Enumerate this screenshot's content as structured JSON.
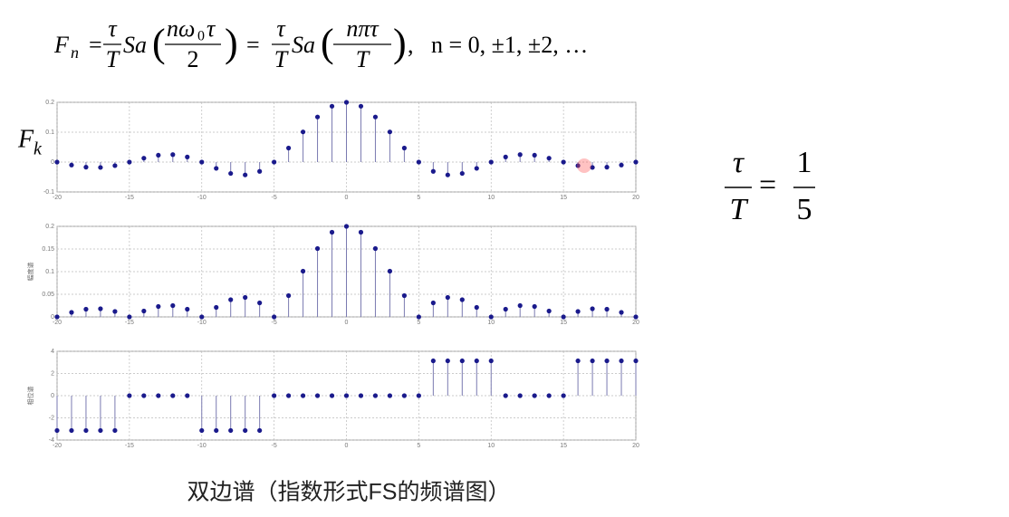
{
  "formula": [
    "F",
    "n",
    "=",
    "τ",
    "T",
    "Sa",
    "(",
    "nω",
    "0",
    "τ",
    "2",
    ")",
    "=",
    "τ",
    "T",
    "Sa",
    "(",
    "nπτ",
    "T",
    ")",
    ",   n = 0, ±1, ±2, …"
  ],
  "ratio": [
    "τ",
    "T",
    "=",
    "1",
    "5"
  ],
  "caption": "双边谱（指数形式FS的频谱图）",
  "chart_data": [
    {
      "type": "stem",
      "ylabel": "F",
      "ylabel_sub": "k",
      "color": "#1a1a8c",
      "stem_color": "#7a7ab0",
      "grid": true,
      "x": [
        -20,
        -19,
        -18,
        -17,
        -16,
        -15,
        -14,
        -13,
        -12,
        -11,
        -10,
        -9,
        -8,
        -7,
        -6,
        -5,
        -4,
        -3,
        -2,
        -1,
        0,
        1,
        2,
        3,
        4,
        5,
        6,
        7,
        8,
        9,
        10,
        11,
        12,
        13,
        14,
        15,
        16,
        17,
        18,
        19,
        20
      ],
      "values": [
        0,
        -0.01,
        -0.017,
        -0.018,
        -0.012,
        0,
        0.013,
        0.023,
        0.025,
        0.017,
        0,
        -0.021,
        -0.038,
        -0.043,
        -0.031,
        0,
        0.047,
        0.101,
        0.151,
        0.187,
        0.2,
        0.187,
        0.151,
        0.101,
        0.047,
        0,
        -0.031,
        -0.043,
        -0.038,
        -0.021,
        0,
        0.017,
        0.025,
        0.023,
        0.013,
        0,
        -0.012,
        -0.018,
        -0.017,
        -0.01,
        0
      ],
      "xlim": [
        -20,
        20
      ],
      "xticks": [
        -20,
        -15,
        -10,
        -5,
        0,
        5,
        10,
        15,
        20
      ],
      "ylim": [
        -0.1,
        0.2
      ],
      "yticks": [
        -0.1,
        0,
        0.1,
        0.2
      ]
    },
    {
      "type": "stem",
      "ylabel": "幅度谱",
      "color": "#1a1a8c",
      "stem_color": "#7a7ab0",
      "grid": true,
      "x": [
        -20,
        -19,
        -18,
        -17,
        -16,
        -15,
        -14,
        -13,
        -12,
        -11,
        -10,
        -9,
        -8,
        -7,
        -6,
        -5,
        -4,
        -3,
        -2,
        -1,
        0,
        1,
        2,
        3,
        4,
        5,
        6,
        7,
        8,
        9,
        10,
        11,
        12,
        13,
        14,
        15,
        16,
        17,
        18,
        19,
        20
      ],
      "values": [
        0,
        0.01,
        0.017,
        0.018,
        0.012,
        0,
        0.013,
        0.023,
        0.025,
        0.017,
        0,
        0.021,
        0.038,
        0.043,
        0.031,
        0,
        0.047,
        0.101,
        0.151,
        0.187,
        0.2,
        0.187,
        0.151,
        0.101,
        0.047,
        0,
        0.031,
        0.043,
        0.038,
        0.021,
        0,
        0.017,
        0.025,
        0.023,
        0.013,
        0,
        0.012,
        0.018,
        0.017,
        0.01,
        0
      ],
      "xlim": [
        -20,
        20
      ],
      "xticks": [
        -20,
        -15,
        -10,
        -5,
        0,
        5,
        10,
        15,
        20
      ],
      "ylim": [
        0,
        0.2
      ],
      "yticks": [
        0,
        0.05,
        0.1,
        0.15,
        0.2
      ]
    },
    {
      "type": "stem",
      "ylabel": "相位谱",
      "color": "#1a1a8c",
      "stem_color": "#7a7ab0",
      "grid": true,
      "x": [
        -20,
        -19,
        -18,
        -17,
        -16,
        -15,
        -14,
        -13,
        -12,
        -11,
        -10,
        -9,
        -8,
        -7,
        -6,
        -5,
        -4,
        -3,
        -2,
        -1,
        0,
        1,
        2,
        3,
        4,
        5,
        6,
        7,
        8,
        9,
        10,
        11,
        12,
        13,
        14,
        15,
        16,
        17,
        18,
        19,
        20
      ],
      "values": [
        -3.14,
        -3.14,
        -3.14,
        -3.14,
        -3.14,
        0,
        0,
        0,
        0,
        0,
        -3.14,
        -3.14,
        -3.14,
        -3.14,
        -3.14,
        0,
        0,
        0,
        0,
        0,
        0,
        0,
        0,
        0,
        0,
        0,
        3.14,
        3.14,
        3.14,
        3.14,
        3.14,
        0,
        0,
        0,
        0,
        0,
        3.14,
        3.14,
        3.14,
        3.14,
        3.14
      ],
      "xlim": [
        -20,
        20
      ],
      "xticks": [
        -20,
        -15,
        -10,
        -5,
        0,
        5,
        10,
        15,
        20
      ],
      "ylim": [
        -4,
        4
      ],
      "yticks": [
        -4,
        -2,
        0,
        2,
        4
      ]
    }
  ]
}
